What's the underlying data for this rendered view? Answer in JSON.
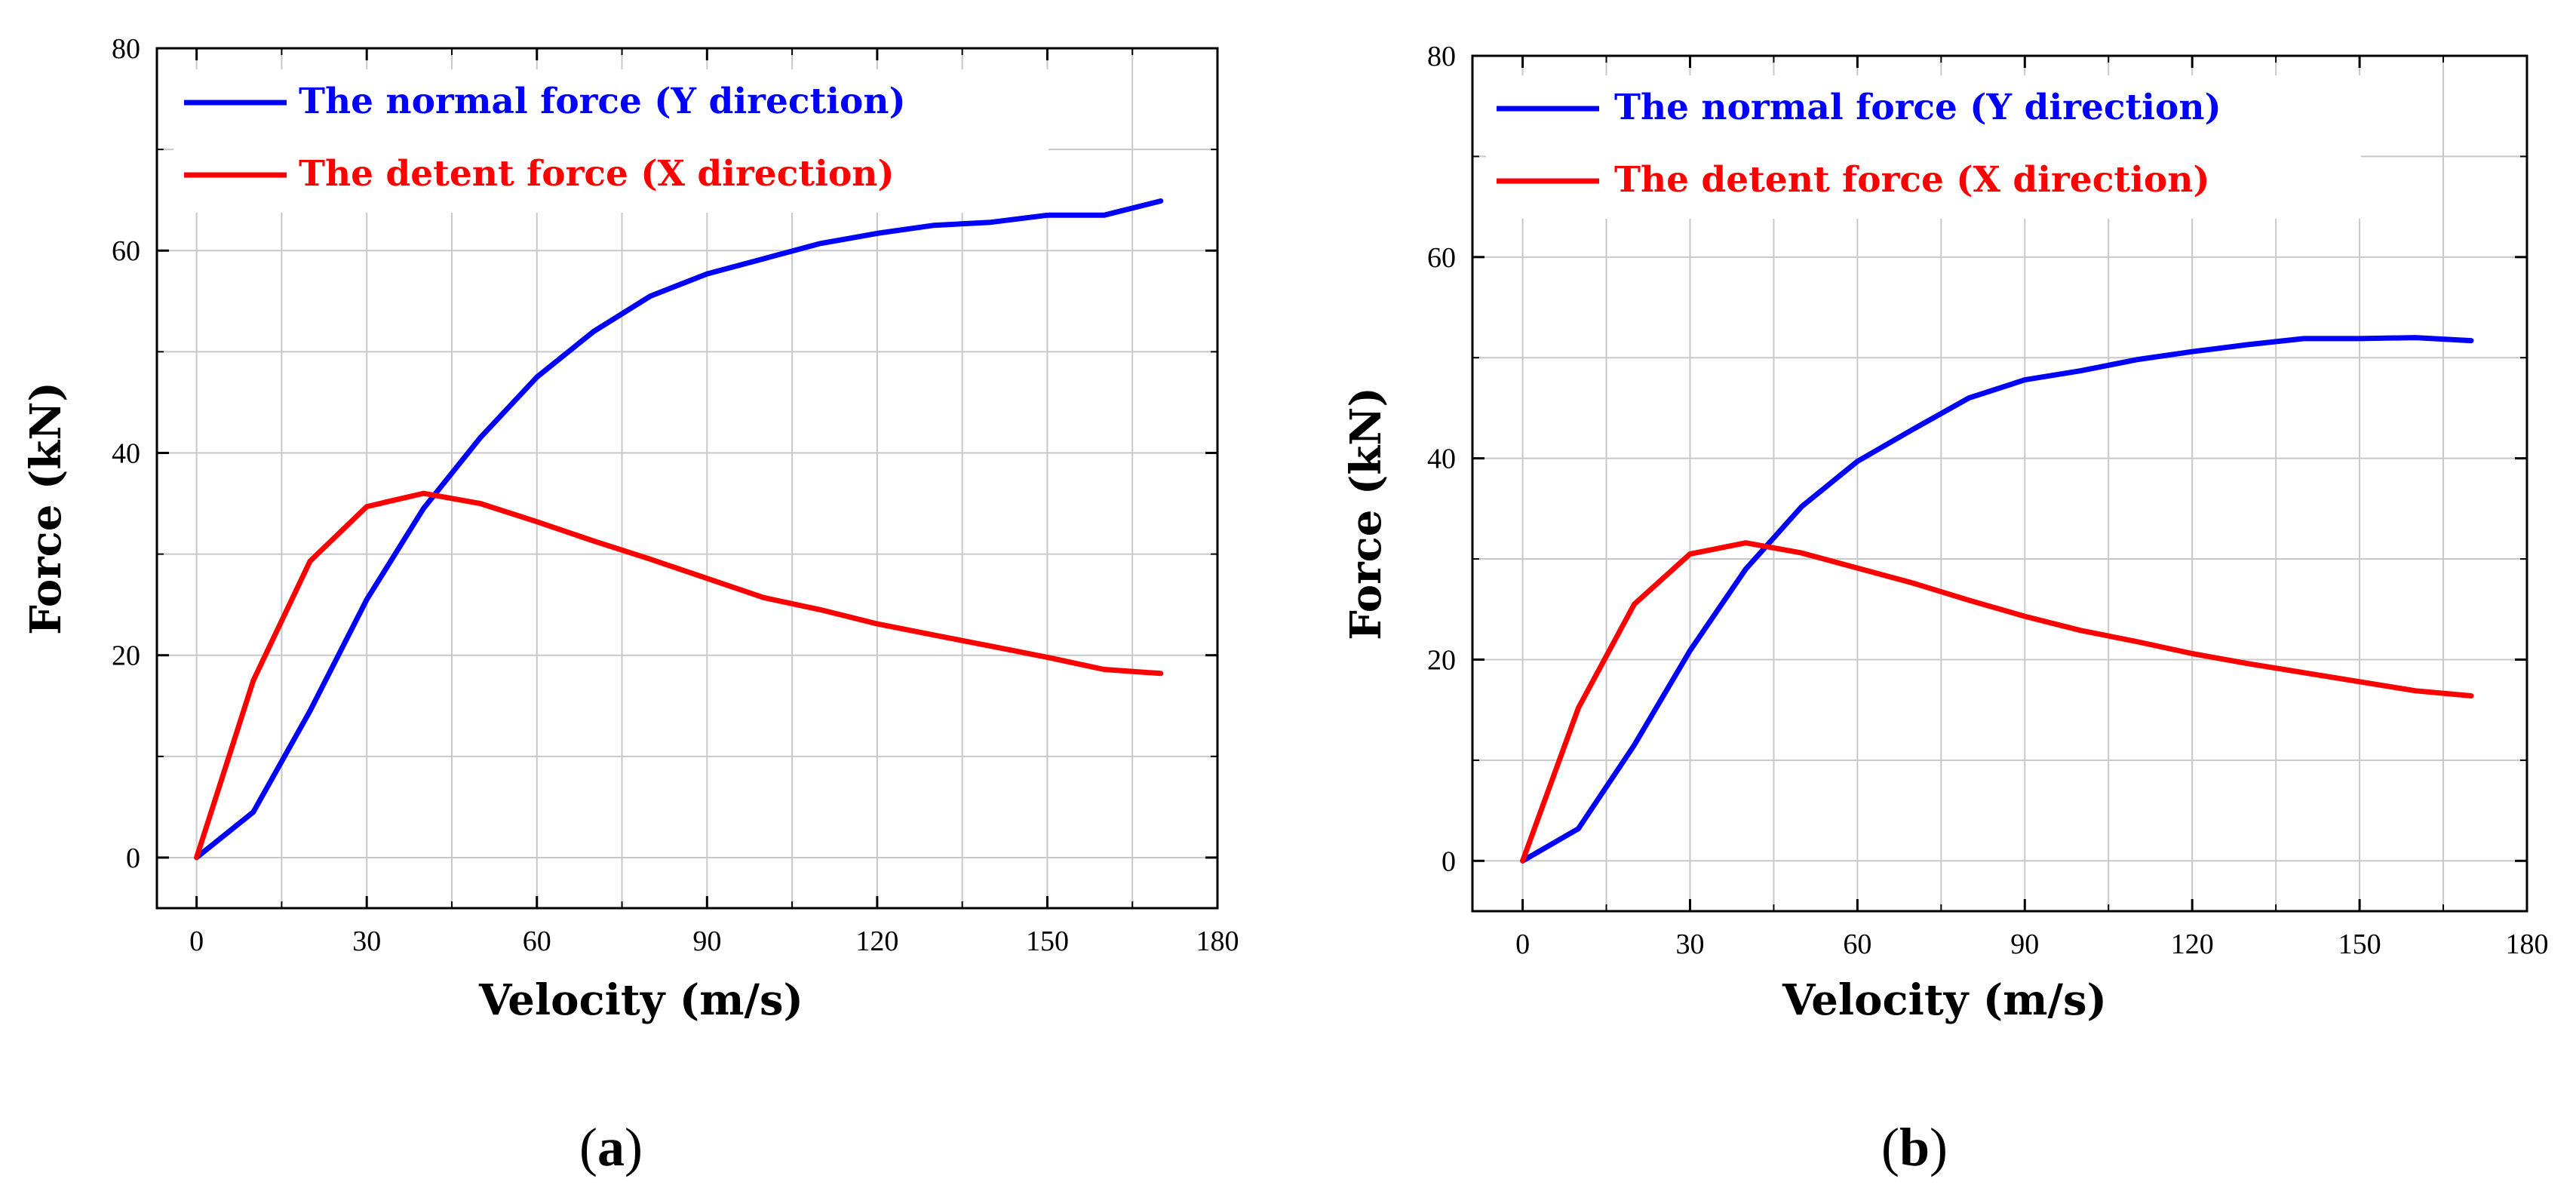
{
  "chart_data": [
    {
      "type": "line",
      "panel_label": "a",
      "xlabel": "Velocity (m/s)",
      "ylabel": "Force (kN)",
      "xlim": [
        -7,
        180
      ],
      "ylim": [
        -5,
        80
      ],
      "xticks": [
        0,
        30,
        60,
        90,
        120,
        150,
        180
      ],
      "yticks": [
        0,
        20,
        40,
        60,
        80
      ],
      "grid": true,
      "legend": "top-left",
      "series": [
        {
          "name": "The normal force (Y direction)",
          "color": "#0000ff",
          "x": [
            0,
            10,
            20,
            30,
            40,
            50,
            60,
            70,
            80,
            90,
            100,
            110,
            120,
            130,
            140,
            150,
            160,
            170
          ],
          "y": [
            0,
            4.5,
            14.5,
            25.5,
            34.5,
            41.5,
            47.5,
            52,
            55.5,
            57.7,
            59.2,
            60.7,
            61.7,
            62.5,
            62.8,
            63.5,
            63.5,
            64.9
          ]
        },
        {
          "name": "The detent force (X direction)",
          "color": "#ff0000",
          "x": [
            0,
            10,
            20,
            30,
            40,
            50,
            60,
            70,
            80,
            90,
            100,
            110,
            120,
            130,
            140,
            150,
            160,
            170
          ],
          "y": [
            0,
            17.5,
            29.3,
            34.7,
            36,
            35,
            33.2,
            31.3,
            29.5,
            27.6,
            25.7,
            24.5,
            23.1,
            22,
            20.9,
            19.8,
            18.6,
            18.2
          ]
        }
      ]
    },
    {
      "type": "line",
      "panel_label": "b",
      "xlabel": "Velocity (m/s)",
      "ylabel": "Force (kN)",
      "xlim": [
        -9,
        180
      ],
      "ylim": [
        -5,
        80
      ],
      "xticks": [
        0,
        30,
        60,
        90,
        120,
        150,
        180
      ],
      "yticks": [
        0,
        20,
        40,
        60,
        80
      ],
      "grid": true,
      "legend": "top-left",
      "series": [
        {
          "name": "The normal force (Y direction)",
          "color": "#0000ff",
          "x": [
            0,
            10,
            20,
            30,
            40,
            50,
            60,
            70,
            80,
            90,
            100,
            110,
            120,
            130,
            140,
            150,
            160,
            170
          ],
          "y": [
            0,
            3.2,
            11.5,
            20.9,
            29,
            35.2,
            39.7,
            42.9,
            46,
            47.8,
            48.7,
            49.8,
            50.6,
            51.3,
            51.9,
            51.9,
            52,
            51.7
          ]
        },
        {
          "name": "The detent force (X direction)",
          "color": "#ff0000",
          "x": [
            0,
            10,
            20,
            30,
            40,
            50,
            60,
            70,
            80,
            90,
            100,
            110,
            120,
            130,
            140,
            150,
            160,
            170
          ],
          "y": [
            0,
            15.2,
            25.5,
            30.5,
            31.6,
            30.6,
            29.1,
            27.6,
            25.9,
            24.3,
            22.9,
            21.8,
            20.6,
            19.6,
            18.7,
            17.8,
            16.9,
            16.4
          ]
        }
      ]
    }
  ]
}
